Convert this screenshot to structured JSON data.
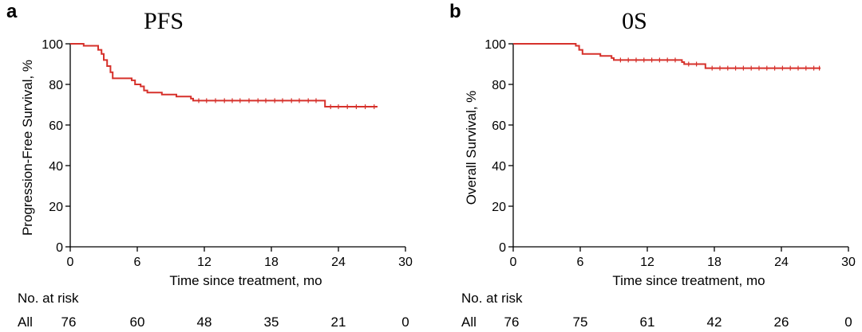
{
  "chart_data": [
    {
      "type": "line",
      "panel_label": "a",
      "title": "PFS",
      "xlabel": "Time since treatment, mo",
      "ylabel": "Progression-Free Survival, %",
      "xlim": [
        0,
        30
      ],
      "ylim": [
        0,
        100
      ],
      "xticks": [
        0,
        6,
        12,
        18,
        24,
        30
      ],
      "yticks": [
        0,
        20,
        40,
        60,
        80,
        100
      ],
      "grid": false,
      "color": "#d6312b",
      "series": [
        {
          "steps": [
            [
              0,
              100
            ],
            [
              1.2,
              99
            ],
            [
              2.5,
              97
            ],
            [
              2.8,
              95
            ],
            [
              3.0,
              92
            ],
            [
              3.3,
              89
            ],
            [
              3.6,
              86
            ],
            [
              3.8,
              83
            ],
            [
              5.5,
              82
            ],
            [
              5.8,
              80
            ],
            [
              6.3,
              79
            ],
            [
              6.6,
              77
            ],
            [
              6.9,
              76
            ],
            [
              8.0,
              76
            ],
            [
              8.2,
              75
            ],
            [
              9.5,
              74
            ],
            [
              10.8,
              73
            ],
            [
              11.0,
              72
            ],
            [
              22.7,
              72
            ],
            [
              22.8,
              69
            ],
            [
              27.5,
              69
            ]
          ],
          "censor": [
            11.5,
            12.2,
            13,
            13.8,
            14.5,
            15.2,
            16,
            16.8,
            17.5,
            18.3,
            19,
            19.8,
            20.5,
            21.3,
            22,
            23.3,
            24,
            24.8,
            25.6,
            26.4,
            27.2
          ]
        }
      ],
      "risk_table": {
        "header": "No. at risk",
        "group": "All",
        "x": [
          0,
          6,
          12,
          18,
          24,
          30
        ],
        "values": [
          "76",
          "60",
          "48",
          "35",
          "21",
          "0"
        ]
      }
    },
    {
      "type": "line",
      "panel_label": "b",
      "title": "0S",
      "xlabel": "Time since treatment, mo",
      "ylabel": "Overall Survival, %",
      "xlim": [
        0,
        30
      ],
      "ylim": [
        0,
        100
      ],
      "xticks": [
        0,
        6,
        12,
        18,
        24,
        30
      ],
      "yticks": [
        0,
        20,
        40,
        60,
        80,
        100
      ],
      "grid": false,
      "color": "#d6312b",
      "series": [
        {
          "steps": [
            [
              0,
              100
            ],
            [
              5.6,
              99
            ],
            [
              5.9,
              97
            ],
            [
              6.2,
              95
            ],
            [
              7.6,
              95
            ],
            [
              7.8,
              94
            ],
            [
              8.8,
              93
            ],
            [
              9.0,
              92
            ],
            [
              15.0,
              92
            ],
            [
              15.1,
              91
            ],
            [
              15.3,
              90
            ],
            [
              17.0,
              90
            ],
            [
              17.2,
              88
            ],
            [
              27.5,
              88
            ]
          ],
          "censor": [
            9.6,
            10.3,
            11,
            11.7,
            12.4,
            13.1,
            13.8,
            14.5,
            15.7,
            16.4,
            17.8,
            18.5,
            19.2,
            19.9,
            20.6,
            21.3,
            22,
            22.7,
            23.4,
            24.1,
            24.8,
            25.5,
            26.2,
            26.9,
            27.4
          ]
        }
      ],
      "risk_table": {
        "header": "No. at risk",
        "group": "All",
        "x": [
          0,
          6,
          12,
          18,
          24,
          30
        ],
        "values": [
          "76",
          "75",
          "61",
          "42",
          "26",
          "0"
        ]
      }
    }
  ]
}
